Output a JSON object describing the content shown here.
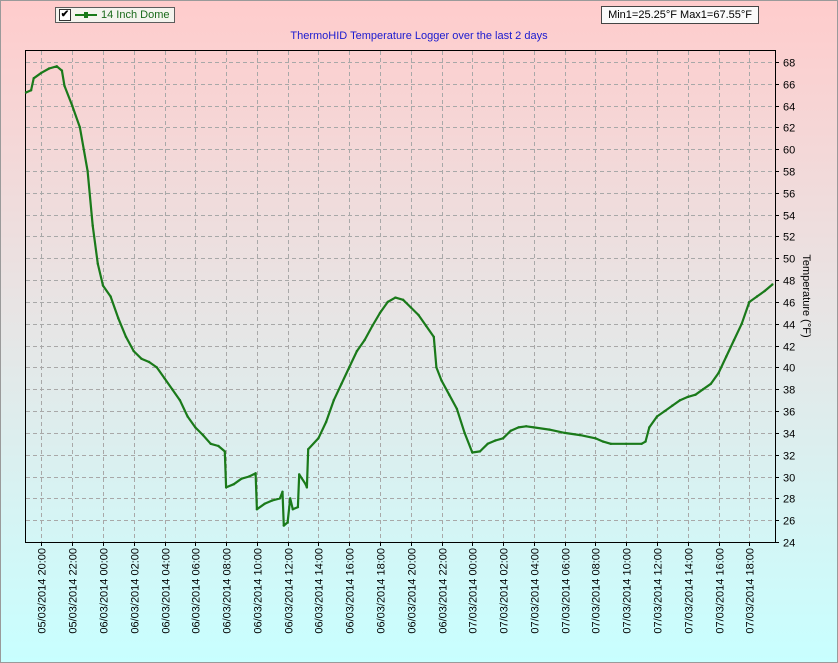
{
  "legend": {
    "checked": true,
    "check_mark": "✔",
    "label": "14 Inch Dome"
  },
  "minmax_label": "Min1=25.25°F Max1=67.55°F",
  "colors": {
    "series": "#1a7a1a",
    "bg_top": "#ffcccc",
    "bg_mid": "#e6e6e6",
    "bg_bottom": "#c8ffff",
    "title": "#1a1ad0"
  },
  "chart_data": {
    "type": "line",
    "title": "ThermoHID Temperature Logger over the last 2 days",
    "xlabel": "",
    "ylabel": "Temperature (°F)",
    "ylim": [
      24,
      69
    ],
    "y_ticks": [
      24,
      26,
      28,
      30,
      32,
      34,
      36,
      38,
      40,
      42,
      44,
      46,
      48,
      50,
      52,
      54,
      56,
      58,
      60,
      62,
      64,
      66,
      68
    ],
    "x_start": "05/03/2014 19:00",
    "x_end": "07/03/2014 19:40",
    "x_tick_labels": [
      "05/03/2014 20:00",
      "05/03/2014 22:00",
      "06/03/2014 00:00",
      "06/03/2014 02:00",
      "06/03/2014 04:00",
      "06/03/2014 06:00",
      "06/03/2014 08:00",
      "06/03/2014 10:00",
      "06/03/2014 12:00",
      "06/03/2014 14:00",
      "06/03/2014 16:00",
      "06/03/2014 18:00",
      "06/03/2014 20:00",
      "06/03/2014 22:00",
      "07/03/2014 00:00",
      "07/03/2014 02:00",
      "07/03/2014 04:00",
      "07/03/2014 06:00",
      "07/03/2014 08:00",
      "07/03/2014 10:00",
      "07/03/2014 12:00",
      "07/03/2014 14:00",
      "07/03/2014 16:00",
      "07/03/2014 18:00"
    ],
    "grid": true,
    "legend_position": "top-left",
    "series": [
      {
        "name": "14 Inch Dome",
        "points": [
          [
            "05/03/2014 19:00",
            65.2
          ],
          [
            "05/03/2014 19:20",
            65.4
          ],
          [
            "05/03/2014 19:30",
            66.5
          ],
          [
            "05/03/2014 20:00",
            67.0
          ],
          [
            "05/03/2014 20:30",
            67.4
          ],
          [
            "05/03/2014 21:00",
            67.6
          ],
          [
            "05/03/2014 21:20",
            67.2
          ],
          [
            "05/03/2014 21:30",
            65.8
          ],
          [
            "05/03/2014 22:00",
            64.0
          ],
          [
            "05/03/2014 22:30",
            62.0
          ],
          [
            "05/03/2014 23:00",
            58.0
          ],
          [
            "05/03/2014 23:20",
            53.0
          ],
          [
            "05/03/2014 23:40",
            49.5
          ],
          [
            "06/03/2014 00:00",
            47.5
          ],
          [
            "06/03/2014 00:30",
            46.5
          ],
          [
            "06/03/2014 01:00",
            44.5
          ],
          [
            "06/03/2014 01:30",
            42.8
          ],
          [
            "06/03/2014 02:00",
            41.5
          ],
          [
            "06/03/2014 02:30",
            40.8
          ],
          [
            "06/03/2014 03:00",
            40.5
          ],
          [
            "06/03/2014 03:30",
            40.0
          ],
          [
            "06/03/2014 04:00",
            39.0
          ],
          [
            "06/03/2014 04:30",
            38.0
          ],
          [
            "06/03/2014 05:00",
            37.0
          ],
          [
            "06/03/2014 05:30",
            35.5
          ],
          [
            "06/03/2014 06:00",
            34.5
          ],
          [
            "06/03/2014 06:30",
            33.8
          ],
          [
            "06/03/2014 07:00",
            33.0
          ],
          [
            "06/03/2014 07:30",
            32.8
          ],
          [
            "06/03/2014 07:55",
            32.3
          ],
          [
            "06/03/2014 08:00",
            29.0
          ],
          [
            "06/03/2014 08:30",
            29.3
          ],
          [
            "06/03/2014 09:00",
            29.8
          ],
          [
            "06/03/2014 09:30",
            30.0
          ],
          [
            "06/03/2014 09:55",
            30.3
          ],
          [
            "06/03/2014 10:00",
            27.0
          ],
          [
            "06/03/2014 10:30",
            27.5
          ],
          [
            "06/03/2014 11:00",
            27.8
          ],
          [
            "06/03/2014 11:30",
            28.0
          ],
          [
            "06/03/2014 11:40",
            28.6
          ],
          [
            "06/03/2014 11:45",
            25.5
          ],
          [
            "06/03/2014 12:00",
            25.8
          ],
          [
            "06/03/2014 12:10",
            28.0
          ],
          [
            "06/03/2014 12:20",
            27.0
          ],
          [
            "06/03/2014 12:40",
            27.2
          ],
          [
            "06/03/2014 12:45",
            30.2
          ],
          [
            "06/03/2014 13:10",
            29.3
          ],
          [
            "06/03/2014 13:15",
            29.0
          ],
          [
            "06/03/2014 13:20",
            32.5
          ],
          [
            "06/03/2014 14:00",
            33.5
          ],
          [
            "06/03/2014 14:30",
            35.0
          ],
          [
            "06/03/2014 15:00",
            37.0
          ],
          [
            "06/03/2014 15:30",
            38.5
          ],
          [
            "06/03/2014 16:00",
            40.0
          ],
          [
            "06/03/2014 16:30",
            41.5
          ],
          [
            "06/03/2014 17:00",
            42.5
          ],
          [
            "06/03/2014 17:30",
            43.8
          ],
          [
            "06/03/2014 18:00",
            45.0
          ],
          [
            "06/03/2014 18:30",
            46.0
          ],
          [
            "06/03/2014 19:00",
            46.4
          ],
          [
            "06/03/2014 19:30",
            46.2
          ],
          [
            "06/03/2014 20:00",
            45.5
          ],
          [
            "06/03/2014 20:30",
            44.8
          ],
          [
            "06/03/2014 21:00",
            43.8
          ],
          [
            "06/03/2014 21:30",
            42.8
          ],
          [
            "06/03/2014 21:40",
            40.0
          ],
          [
            "06/03/2014 22:00",
            38.8
          ],
          [
            "06/03/2014 22:30",
            37.5
          ],
          [
            "06/03/2014 23:00",
            36.2
          ],
          [
            "06/03/2014 23:30",
            34.0
          ],
          [
            "07/03/2014 00:00",
            32.2
          ],
          [
            "07/03/2014 00:30",
            32.3
          ],
          [
            "07/03/2014 01:00",
            33.0
          ],
          [
            "07/03/2014 01:30",
            33.3
          ],
          [
            "07/03/2014 02:00",
            33.5
          ],
          [
            "07/03/2014 02:30",
            34.2
          ],
          [
            "07/03/2014 03:00",
            34.5
          ],
          [
            "07/03/2014 03:30",
            34.6
          ],
          [
            "07/03/2014 04:00",
            34.5
          ],
          [
            "07/03/2014 05:00",
            34.3
          ],
          [
            "07/03/2014 06:00",
            34.0
          ],
          [
            "07/03/2014 07:00",
            33.8
          ],
          [
            "07/03/2014 08:00",
            33.5
          ],
          [
            "07/03/2014 08:30",
            33.2
          ],
          [
            "07/03/2014 09:00",
            33.0
          ],
          [
            "07/03/2014 10:00",
            33.0
          ],
          [
            "07/03/2014 11:00",
            33.0
          ],
          [
            "07/03/2014 11:15",
            33.2
          ],
          [
            "07/03/2014 11:30",
            34.5
          ],
          [
            "07/03/2014 12:00",
            35.5
          ],
          [
            "07/03/2014 12:30",
            36.0
          ],
          [
            "07/03/2014 13:00",
            36.5
          ],
          [
            "07/03/2014 13:30",
            37.0
          ],
          [
            "07/03/2014 14:00",
            37.3
          ],
          [
            "07/03/2014 14:30",
            37.5
          ],
          [
            "07/03/2014 15:00",
            38.0
          ],
          [
            "07/03/2014 15:30",
            38.5
          ],
          [
            "07/03/2014 16:00",
            39.5
          ],
          [
            "07/03/2014 16:30",
            41.0
          ],
          [
            "07/03/2014 17:00",
            42.5
          ],
          [
            "07/03/2014 17:30",
            44.0
          ],
          [
            "07/03/2014 18:00",
            46.0
          ],
          [
            "07/03/2014 18:30",
            46.5
          ],
          [
            "07/03/2014 19:00",
            47.0
          ],
          [
            "07/03/2014 19:30",
            47.6
          ]
        ]
      }
    ]
  }
}
